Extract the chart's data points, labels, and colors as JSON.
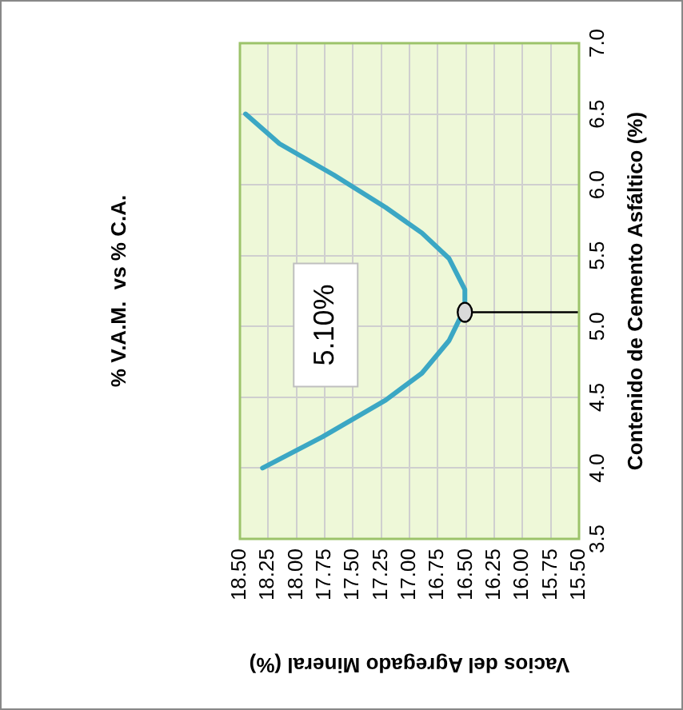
{
  "chart_data": {
    "type": "line",
    "title": "% V.A.M.  vs % C.A.",
    "xlabel": "Vacios del Agregado Mineral (%)",
    "ylabel": "Contenido de Cemento Asfáltico (%)",
    "series": [
      {
        "color": "#3ba7c4",
        "x": [
          18.3,
          17.77,
          17.21,
          16.89,
          16.65,
          16.54,
          16.51,
          16.51,
          16.65,
          16.89,
          17.21,
          17.67,
          18.15,
          18.45
        ],
        "values": [
          4.0,
          4.22,
          4.48,
          4.67,
          4.9,
          5.08,
          5.1,
          5.26,
          5.48,
          5.66,
          5.84,
          6.07,
          6.29,
          6.5
        ]
      }
    ],
    "xlim": [
      18.5,
      15.5
    ],
    "xticks": [
      {
        "value": 18.5,
        "label": "18.50"
      },
      18.25,
      {
        "value": 18,
        "label": "18.00"
      },
      17.75,
      {
        "value": 17.5,
        "label": "17.50"
      },
      17.25,
      {
        "value": 17,
        "label": "17.00"
      },
      16.75,
      {
        "value": 16.5,
        "label": "16.50"
      },
      16.25,
      {
        "value": 16,
        "label": "16.00"
      },
      15.75,
      {
        "value": 15.5,
        "label": "15.50"
      }
    ],
    "ylim": [
      3.5,
      7.0
    ],
    "yticks": [
      3.5,
      {
        "value": 4,
        "label": "4.0"
      },
      4.5,
      {
        "value": 5,
        "label": "5.0"
      },
      5.5,
      {
        "value": 6,
        "label": "6.0"
      },
      6.5,
      {
        "value": 7,
        "label": "7.0"
      }
    ],
    "ref_lines": [
      {
        "axis": "y",
        "value": 5.1,
        "label": "5.10%",
        "color": "#000000"
      }
    ],
    "grid": true,
    "legend": false,
    "marker": "none",
    "line_style": "solid"
  }
}
